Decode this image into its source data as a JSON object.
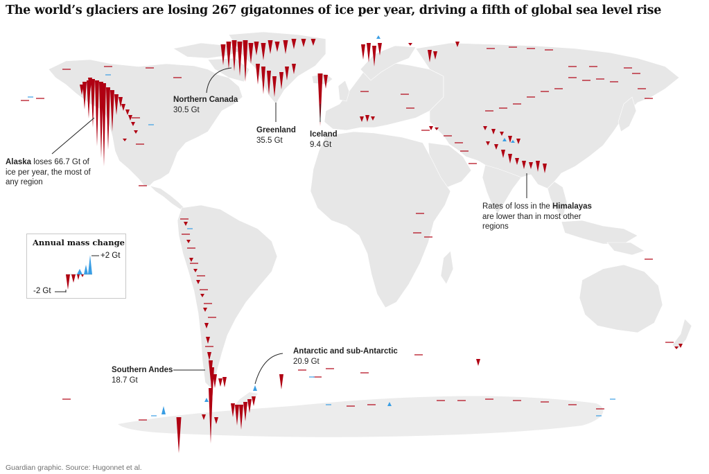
{
  "title": "The world’s glaciers are losing 267 gigatonnes of ice per year, driving a fifth of global sea level rise",
  "credit": "Guardian graphic. Source: Hugonnet et al.",
  "colors": {
    "loss": "#b00012",
    "gain": "#3a9ee4",
    "land": "#e7e7e7",
    "antarctica": "#ececec"
  },
  "legend": {
    "title": "Annual mass change",
    "pos_label": "+2 Gt",
    "neg_label": "-2 Gt"
  },
  "annotations": {
    "alaska": {
      "name": "Alaska",
      "text": " loses 66.7 Gt of ice per year, the most of any region"
    },
    "northern_canada": {
      "name": "Northern Canada",
      "value": "30.5 Gt"
    },
    "greenland": {
      "name": "Greenland",
      "value": "35.5 Gt"
    },
    "iceland": {
      "name": "Iceland",
      "value": "9.4 Gt"
    },
    "himalayas": {
      "pre": "Rates of loss in the ",
      "name": "Himalayas",
      "post": " are lower than in most other regions"
    },
    "southern_andes": {
      "name": "Southern Andes",
      "value": "18.7 Gt"
    },
    "antarctic": {
      "name": "Antarctic and sub-Antarctic",
      "value": "20.9 Gt"
    }
  }
}
